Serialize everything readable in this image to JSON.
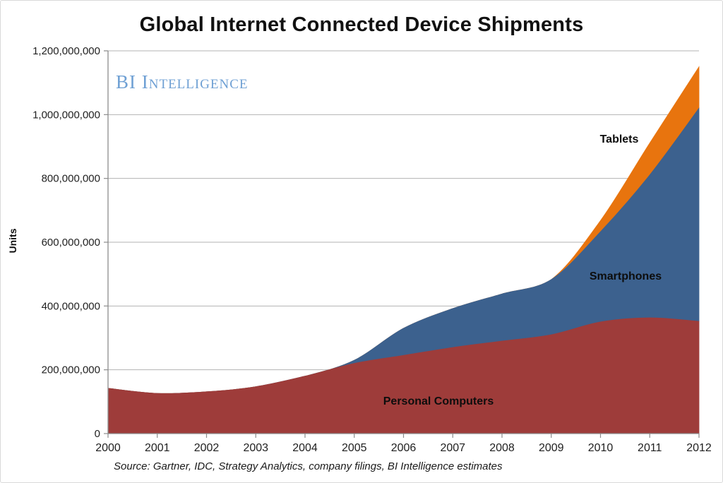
{
  "chart_title": "Global Internet Connected Device Shipments",
  "branding": {
    "logo_text": "BI Intelligence",
    "logo_color": "#6FA0D4"
  },
  "source_note": "Source: Gartner, IDC, Strategy Analytics, company filings, BI Intelligence estimates",
  "chart_data": {
    "type": "area",
    "stacked": true,
    "title": "Global Internet Connected Device Shipments",
    "xlabel": "",
    "ylabel": "Units",
    "grid": "horizontal",
    "legend": "direct-area-labels",
    "ylim": [
      0,
      1200000000
    ],
    "x": [
      2000,
      2001,
      2002,
      2003,
      2004,
      2005,
      2006,
      2007,
      2008,
      2009,
      2010,
      2011,
      2012
    ],
    "x_tick_labels": [
      "2000",
      "2001",
      "2002",
      "2003",
      "2004",
      "2005",
      "2006",
      "2007",
      "2008",
      "2009",
      "2010",
      "2011",
      "2012"
    ],
    "y_ticks": [
      {
        "value": 0,
        "label": "0"
      },
      {
        "value": 200000000,
        "label": "200,000,000"
      },
      {
        "value": 400000000,
        "label": "400,000,000"
      },
      {
        "value": 600000000,
        "label": "600,000,000"
      },
      {
        "value": 800000000,
        "label": "800,000,000"
      },
      {
        "value": 1000000000,
        "label": "1,000,000,000"
      },
      {
        "value": 1200000000,
        "label": "1,200,000,000"
      }
    ],
    "series": [
      {
        "name": "Personal Computers",
        "color": "#9E3C3A",
        "values": [
          142000000,
          126000000,
          131000000,
          147000000,
          180000000,
          220000000,
          245000000,
          270000000,
          290000000,
          310000000,
          350000000,
          363000000,
          352000000
        ]
      },
      {
        "name": "Smartphones",
        "color": "#3C618E",
        "values": [
          0,
          0,
          0,
          0,
          0,
          10000000,
          85000000,
          122000000,
          148000000,
          173000000,
          283000000,
          448000000,
          668000000
        ]
      },
      {
        "name": "Tablets",
        "color": "#E8740E",
        "values": [
          0,
          0,
          0,
          0,
          0,
          0,
          0,
          0,
          0,
          0,
          35000000,
          100000000,
          130000000
        ]
      }
    ],
    "axis_color": "#8C8C8C",
    "gridline_color": "#B3B3B3"
  }
}
